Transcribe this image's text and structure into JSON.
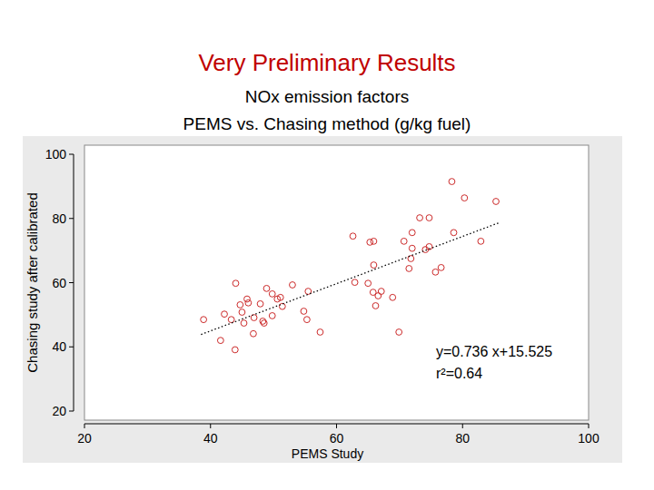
{
  "chart_data": {
    "type": "scatter",
    "title": "Very Preliminary Results",
    "subtitle": [
      "NOx emission factors",
      "PEMS vs. Chasing method (g/kg fuel)"
    ],
    "x_label": "PEMS Study",
    "y_label": "Chasing study after calibrated",
    "annotations": [
      "y=0.736 x+15.525",
      "r²=0.64"
    ],
    "xlim": [
      20,
      100
    ],
    "xticks": [
      20,
      40,
      60,
      80,
      100
    ],
    "ylim": [
      20,
      100
    ],
    "yticks": [
      20,
      40,
      60,
      80,
      100
    ],
    "grid": false,
    "series": [
      {
        "type": "scatter",
        "color": "#cc2a2a",
        "marker": "circle",
        "x": [
          38.9,
          41.6,
          42.2,
          43.3,
          43.9,
          44.0,
          44.7,
          45.0,
          45.3,
          45.8,
          46.0,
          46.8,
          46.9,
          47.9,
          48.3,
          48.5,
          48.9,
          49.8,
          49.8,
          50.6,
          51.1,
          51.4,
          53.0,
          54.8,
          55.3,
          55.5,
          57.4,
          62.6,
          62.9,
          65.0,
          65.3,
          65.9,
          65.9,
          65.8,
          66.2,
          66.6,
          67.1,
          68.9,
          69.9,
          70.7,
          71.5,
          72.0,
          72.0,
          71.8,
          73.2,
          74.1,
          74.7,
          74.7,
          75.7,
          76.6,
          78.3,
          78.6,
          80.3,
          82.9,
          85.3
        ],
        "values": [
          48.5,
          42.0,
          50.2,
          48.5,
          39.1,
          59.8,
          53.1,
          50.8,
          47.4,
          54.9,
          53.7,
          44.1,
          49.1,
          53.4,
          48.0,
          47.4,
          58.2,
          56.5,
          49.7,
          54.9,
          55.4,
          52.6,
          59.3,
          51.1,
          48.5,
          57.3,
          44.6,
          74.5,
          60.1,
          59.8,
          72.6,
          72.9,
          65.5,
          57.0,
          52.8,
          55.9,
          57.3,
          55.4,
          44.6,
          72.9,
          64.4,
          75.6,
          70.7,
          67.5,
          80.2,
          70.3,
          71.2,
          80.2,
          63.3,
          64.7,
          91.5,
          75.6,
          86.4,
          72.9,
          85.3
        ]
      },
      {
        "type": "line",
        "color": "#000000",
        "line_style": "dotted",
        "x": [
          38.5,
          86
        ],
        "values": [
          43.86,
          78.82
        ]
      }
    ]
  }
}
